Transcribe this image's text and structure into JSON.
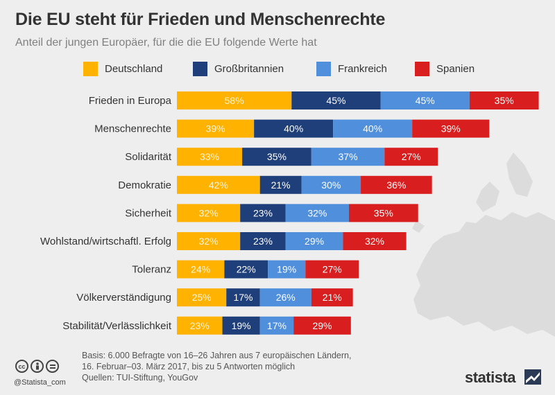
{
  "header": {
    "title": "Die EU steht für Frieden und Menschenrechte",
    "subtitle": "Anteil der jungen Europäer, für die die EU folgende Werte hat"
  },
  "colors": {
    "Deutschland": "#ffb300",
    "Großbritannien": "#1f3f7a",
    "Frankreich": "#4f8fdb",
    "Spanien": "#d81e1e",
    "background": "#eeeeee",
    "map": "#dcdcdc"
  },
  "chart_data": {
    "type": "bar",
    "orientation": "horizontal",
    "stacked": true,
    "categories": [
      "Frieden in Europa",
      "Menschenrechte",
      "Solidarität",
      "Demokratie",
      "Sicherheit",
      "Wohlstand/wirtschaftl. Erfolg",
      "Toleranz",
      "Völkerverständigung",
      "Stabilität/Verlässlichkeit"
    ],
    "series": [
      {
        "name": "Deutschland",
        "values": [
          58,
          39,
          33,
          42,
          32,
          32,
          24,
          25,
          23
        ]
      },
      {
        "name": "Großbritannien",
        "values": [
          45,
          40,
          35,
          21,
          23,
          23,
          22,
          17,
          19
        ]
      },
      {
        "name": "Frankreich",
        "values": [
          45,
          40,
          37,
          30,
          32,
          29,
          19,
          26,
          17
        ]
      },
      {
        "name": "Spanien",
        "values": [
          35,
          39,
          27,
          36,
          35,
          32,
          27,
          21,
          29
        ]
      }
    ],
    "value_suffix": "%",
    "legend_position": "top",
    "grid": false
  },
  "footer": {
    "basis_line1": "Basis: 6.000 Befragte von 16–26 Jahren aus 7 europäischen Ländern,",
    "basis_line2": "16. Februar–03. März 2017, bis zu 5 Antworten möglich",
    "sources": "Quellen: TUI-Stiftung, YouGov",
    "handle": "@Statista_com",
    "brand": "statista",
    "cc_icons": [
      "cc-icon",
      "attribution-icon",
      "no-derivatives-icon"
    ]
  }
}
